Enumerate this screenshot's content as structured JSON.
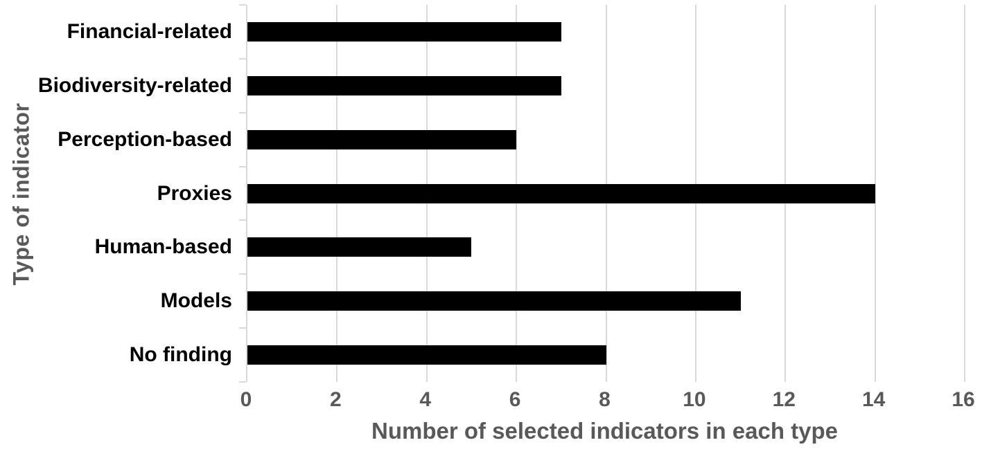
{
  "chart_data": {
    "type": "bar",
    "orientation": "horizontal",
    "categories": [
      "Financial-related",
      "Biodiversity-related",
      "Perception-based",
      "Proxies",
      "Human-based",
      "Models",
      "No finding"
    ],
    "values": [
      7,
      7,
      6,
      14,
      5,
      11,
      8
    ],
    "title": "",
    "xlabel": "Number of selected indicators in each type",
    "ylabel": "Type of indicator",
    "xlim": [
      0,
      16
    ],
    "xticks": [
      0,
      2,
      4,
      6,
      8,
      10,
      12,
      14,
      16
    ],
    "grid": "vertical-only",
    "legend": "none",
    "colors": {
      "bar": "#000000",
      "axis_text": "#595959",
      "gridline": "#d9d9d9",
      "category_text": "#000000"
    }
  }
}
